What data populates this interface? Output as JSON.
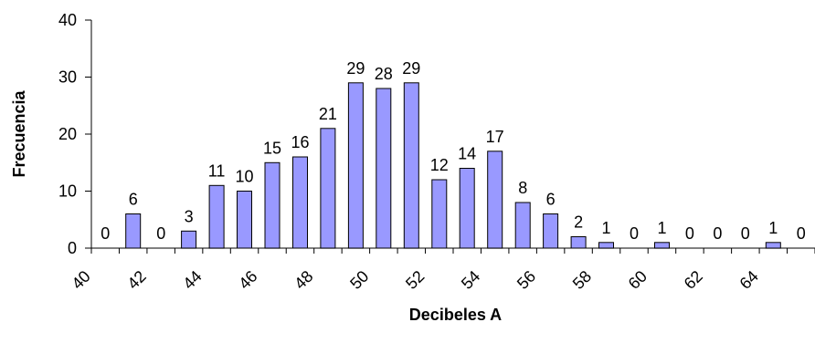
{
  "chart_data": {
    "type": "bar",
    "title": "",
    "xlabel": "Decibeles A",
    "ylabel": "Frecuencia",
    "ylim": [
      0,
      40
    ],
    "yticks": [
      "0",
      "10",
      "20",
      "30",
      "40"
    ],
    "xticks": [
      "40",
      "42",
      "44",
      "46",
      "48",
      "50",
      "52",
      "54",
      "56",
      "58",
      "60",
      "62",
      "64"
    ],
    "categories": [
      "40.5",
      "41.5",
      "42.5",
      "43.5",
      "44.5",
      "45.5",
      "46.5",
      "47.5",
      "48.5",
      "49.5",
      "50.5",
      "51.5",
      "52.5",
      "53.5",
      "54.5",
      "55.5",
      "56.5",
      "57.5",
      "58.5",
      "59.5",
      "60.5",
      "61.5",
      "62.5",
      "63.5",
      "64.5",
      "65.5"
    ],
    "values": [
      0,
      6,
      0,
      3,
      11,
      10,
      15,
      16,
      21,
      29,
      28,
      29,
      12,
      14,
      17,
      8,
      6,
      2,
      1,
      0,
      1,
      0,
      0,
      0,
      1,
      0
    ],
    "data_labels": [
      "0",
      "6",
      "0",
      "3",
      "11",
      "10",
      "15",
      "16",
      "21",
      "29",
      "28",
      "29",
      "12",
      "14",
      "17",
      "8",
      "6",
      "2",
      "1",
      "0",
      "1",
      "0",
      "0",
      "0",
      "1",
      "0"
    ],
    "bar_color": "#9999ff",
    "grid": false,
    "legend": "none"
  }
}
